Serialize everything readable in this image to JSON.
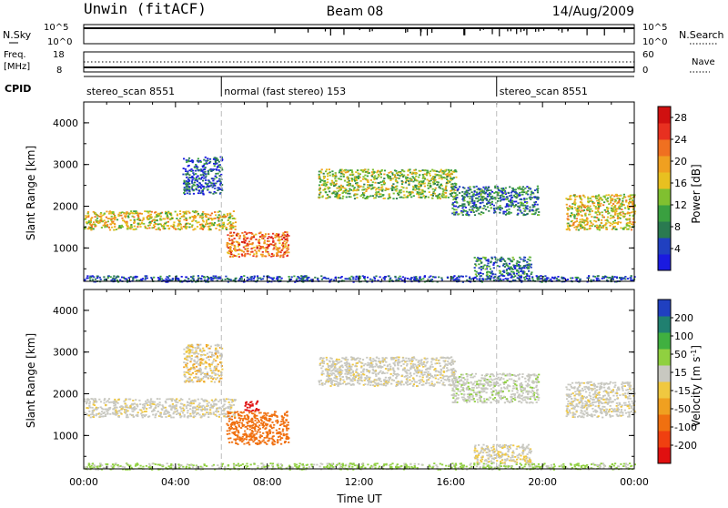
{
  "header": {
    "left": "Unwin (fitACF)",
    "center": "Beam 08",
    "right": "14/Aug/2009"
  },
  "noise_panel": {
    "left_label": "N.Sky",
    "right_label": "N.Search",
    "left_ticks": [
      "10^5",
      "10^0"
    ],
    "right_ticks": [
      "10^5",
      "10^0"
    ]
  },
  "freq_panel": {
    "left_label_1": "Freq.",
    "left_label_2": "[MHz]",
    "right_label": "Nave",
    "left_ticks": [
      "18",
      "8"
    ],
    "right_ticks": [
      "60",
      "0"
    ]
  },
  "cpid_panel": {
    "label": "CPID",
    "segments": [
      {
        "text": "stereo_scan 8551",
        "start_hour": 0,
        "end_hour": 6
      },
      {
        "text": "normal (fast stereo) 153",
        "start_hour": 6,
        "end_hour": 18
      },
      {
        "text": "stereo_scan 8551",
        "start_hour": 18,
        "end_hour": 24
      }
    ]
  },
  "colors": {
    "power_scale": [
      "#1a1ae0",
      "#2040c0",
      "#2a7a50",
      "#3aa040",
      "#80c030",
      "#e8c020",
      "#f0a020",
      "#f07020",
      "#e83020",
      "#d01010"
    ],
    "velocity_scale": [
      "#e01010",
      "#f04010",
      "#f07010",
      "#f0a020",
      "#f0c840",
      "#c8c8c0",
      "#90d040",
      "#40b040",
      "#208070",
      "#2040c0"
    ]
  },
  "chart_data": [
    {
      "type": "heatmap",
      "panel": "power",
      "ylabel": "Slant Range [km]",
      "yticks": [
        "4000",
        "3000",
        "2000",
        "1000"
      ],
      "ylim": [
        200,
        4500
      ],
      "xlim_hours": [
        0,
        24
      ],
      "colorbar": {
        "label": "Power [dB]",
        "ticks": [
          "28",
          "24",
          "20",
          "16",
          "12",
          "8",
          "4"
        ],
        "range": [
          0,
          30
        ]
      },
      "echo_bands": [
        {
          "start_hour": 0.0,
          "end_hour": 6.6,
          "range_km": [
            1450,
            1900
          ],
          "level": 0.5
        },
        {
          "start_hour": 4.3,
          "end_hour": 6.0,
          "range_km": [
            2300,
            3200
          ],
          "level": 0.15
        },
        {
          "start_hour": 6.2,
          "end_hour": 8.9,
          "range_km": [
            800,
            1400
          ],
          "level": 0.75
        },
        {
          "start_hour": 10.2,
          "end_hour": 16.2,
          "range_km": [
            2200,
            2900
          ],
          "level": 0.4
        },
        {
          "start_hour": 16.0,
          "end_hour": 19.8,
          "range_km": [
            1800,
            2500
          ],
          "level": 0.2
        },
        {
          "start_hour": 21.0,
          "end_hour": 24.0,
          "range_km": [
            1450,
            2300
          ],
          "level": 0.55
        },
        {
          "start_hour": 17.0,
          "end_hour": 19.5,
          "range_km": [
            350,
            800
          ],
          "level": 0.2
        },
        {
          "start_hour": 0.0,
          "end_hour": 24.0,
          "range_km": [
            200,
            350
          ],
          "level": 0.1
        }
      ]
    },
    {
      "type": "heatmap",
      "panel": "velocity",
      "ylabel": "Slant Range [km]",
      "yticks": [
        "4000",
        "3000",
        "2000",
        "1000"
      ],
      "ylim": [
        200,
        4500
      ],
      "xlim_hours": [
        0,
        24
      ],
      "xticks": [
        "00:00",
        "04:00",
        "08:00",
        "12:00",
        "16:00",
        "20:00",
        "00:00"
      ],
      "xlabel": "Time UT",
      "colorbar": {
        "label": "Velocity [m s-1]",
        "ticks": [
          "200",
          "100",
          "50",
          "15",
          "-15",
          "-50",
          "-100",
          "-200"
        ],
        "range": [
          -250,
          250
        ]
      },
      "echo_bands": [
        {
          "start_hour": 0.0,
          "end_hour": 6.6,
          "range_km": [
            1450,
            1900
          ],
          "velocity": 0
        },
        {
          "start_hour": 4.3,
          "end_hour": 6.0,
          "range_km": [
            2300,
            3200
          ],
          "velocity": -10
        },
        {
          "start_hour": 6.2,
          "end_hour": 8.9,
          "range_km": [
            800,
            1600
          ],
          "velocity": -60
        },
        {
          "start_hour": 7.0,
          "end_hour": 7.6,
          "range_km": [
            1600,
            1850
          ],
          "velocity": -200
        },
        {
          "start_hour": 10.2,
          "end_hour": 16.2,
          "range_km": [
            2200,
            2900
          ],
          "velocity": 0
        },
        {
          "start_hour": 16.0,
          "end_hour": 19.8,
          "range_km": [
            1800,
            2500
          ],
          "velocity": 5
        },
        {
          "start_hour": 21.0,
          "end_hour": 24.0,
          "range_km": [
            1450,
            2300
          ],
          "velocity": 0
        },
        {
          "start_hour": 17.0,
          "end_hour": 19.5,
          "range_km": [
            350,
            800
          ],
          "velocity": -5
        },
        {
          "start_hour": 0.0,
          "end_hour": 24.0,
          "range_km": [
            200,
            350
          ],
          "velocity": 20
        }
      ]
    }
  ]
}
